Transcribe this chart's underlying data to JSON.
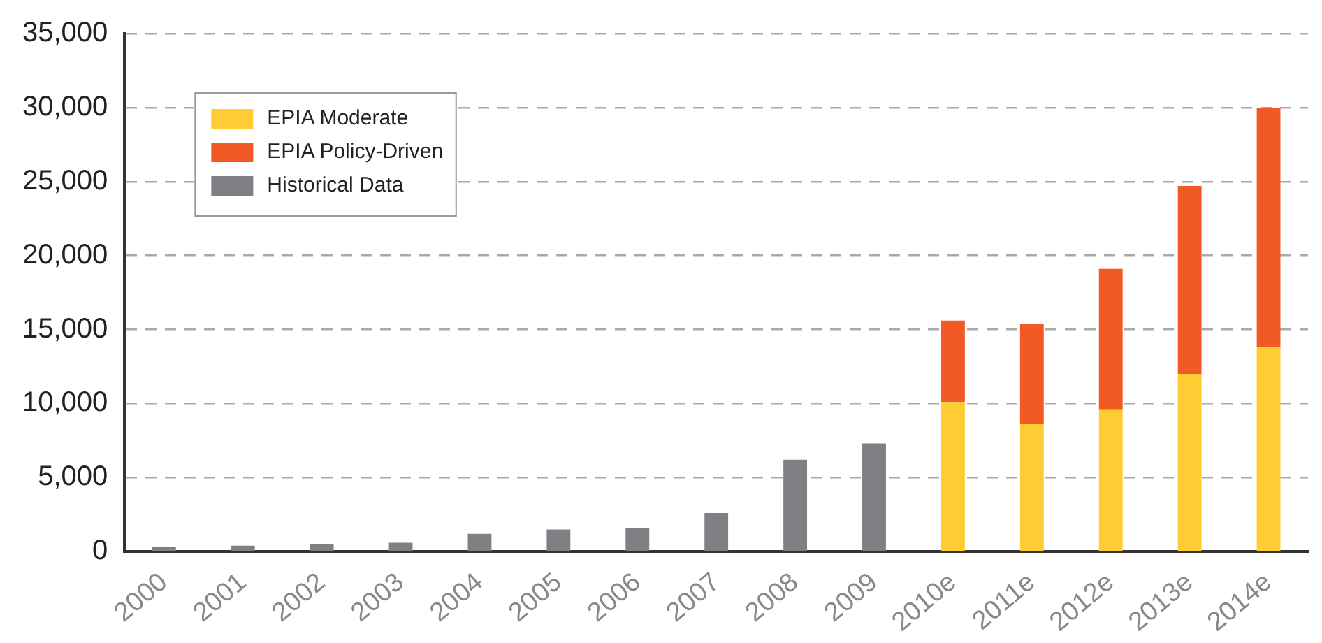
{
  "chart_data": {
    "type": "bar",
    "stacked": true,
    "categories": [
      "2000",
      "2001",
      "2002",
      "2003",
      "2004",
      "2005",
      "2006",
      "2007",
      "2008",
      "2009",
      "2010e",
      "2011e",
      "2012e",
      "2013e",
      "2014e"
    ],
    "series": [
      {
        "name": "EPIA Moderate",
        "color": "#ffcc33",
        "values": [
          null,
          null,
          null,
          null,
          null,
          null,
          null,
          null,
          null,
          null,
          10100,
          8600,
          9600,
          12000,
          13800
        ]
      },
      {
        "name": "EPIA Policy-Driven",
        "color": "#f15a24",
        "values": [
          null,
          null,
          null,
          null,
          null,
          null,
          null,
          null,
          null,
          null,
          5500,
          6800,
          9500,
          12700,
          16200
        ]
      },
      {
        "name": "Historical Data",
        "color": "#808084",
        "values": [
          300,
          400,
          500,
          600,
          1200,
          1500,
          1600,
          2600,
          6200,
          7300,
          null,
          null,
          null,
          null,
          null
        ]
      }
    ],
    "ylim": [
      0,
      35000
    ],
    "yticks": [
      0,
      {
        "value": 5000,
        "label": "5,000"
      },
      {
        "value": 10000,
        "label": "10,000"
      },
      {
        "value": 15000,
        "label": "15,000"
      },
      {
        "value": 20000,
        "label": "20,000"
      },
      {
        "value": 25000,
        "label": "25,000"
      },
      {
        "value": 30000,
        "label": "30,000"
      },
      {
        "value": 35000,
        "label": "35,000"
      }
    ],
    "grid": "y",
    "legend": "top left"
  }
}
